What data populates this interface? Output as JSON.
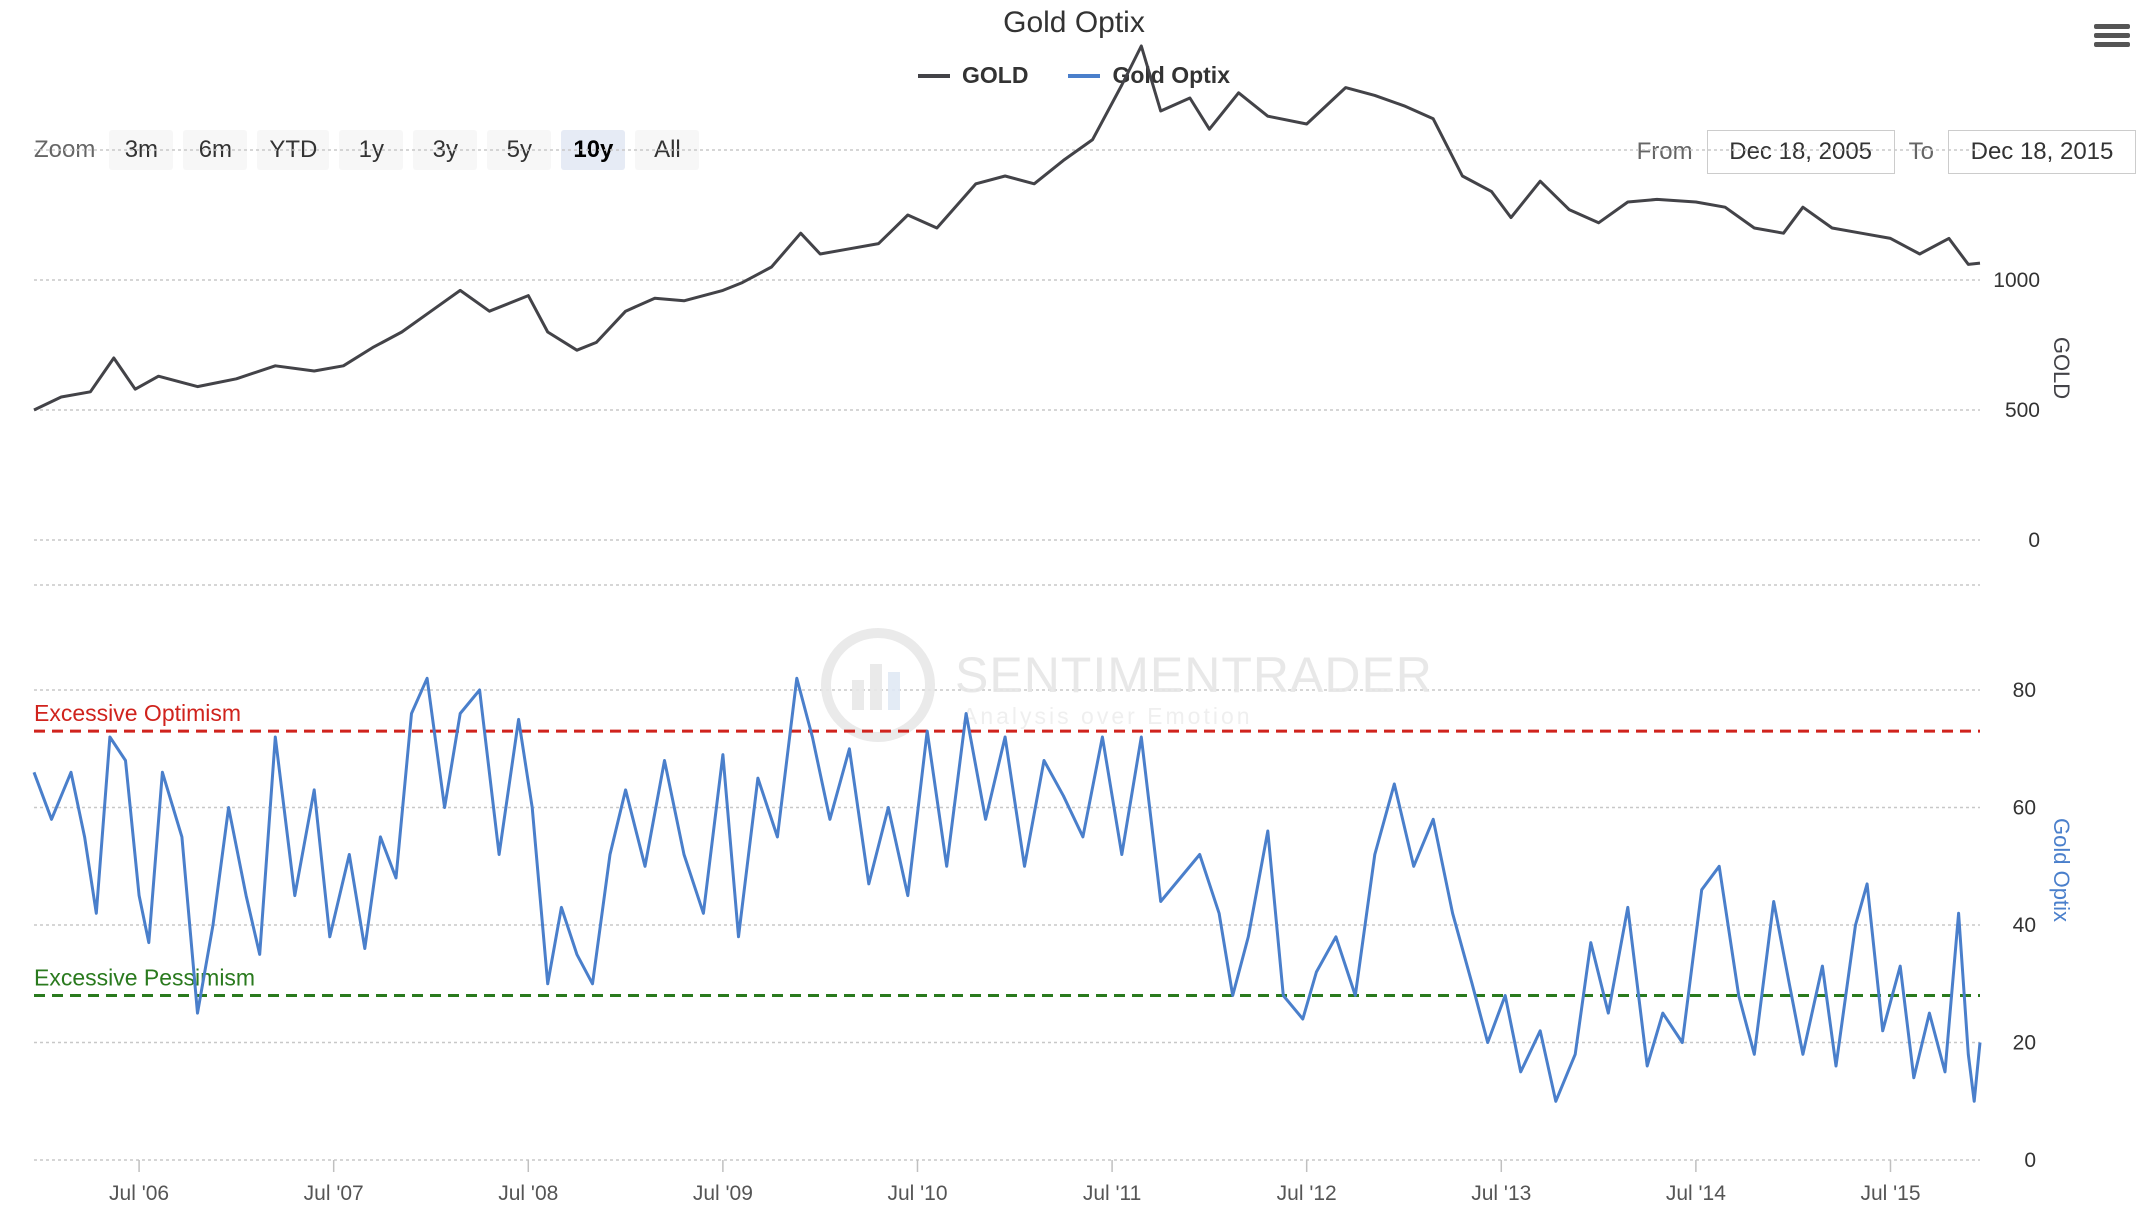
{
  "header": {
    "title": "Gold Optix"
  },
  "legend": [
    {
      "label": "GOLD",
      "color": "#434348"
    },
    {
      "label": "Gold Optix",
      "color": "#4a7fcb"
    }
  ],
  "zoom": {
    "label": "Zoom",
    "buttons": [
      "3m",
      "6m",
      "YTD",
      "1y",
      "3y",
      "5y",
      "10y",
      "All"
    ],
    "selected": "10y"
  },
  "range": {
    "from_label": "From",
    "from_value": "Dec 18, 2005",
    "to_label": "To",
    "to_value": "Dec 18, 2015"
  },
  "watermark": {
    "brand": "SENTIMENTRADER",
    "tagline": "Analysis over Emotion"
  },
  "icons": {
    "menu": "hamburger-menu-icon",
    "watermark_logo": "sentimentrader-logo-icon"
  },
  "chart_data": [
    {
      "type": "line",
      "name": "GOLD",
      "color": "#434348",
      "ylabel": "GOLD",
      "ylim": [
        0,
        1500
      ],
      "yticks": [
        0,
        500,
        1000
      ],
      "x_range": [
        2005.96,
        2015.96
      ],
      "xticks": [
        {
          "label": "Jul '06",
          "x": 2006.5
        },
        {
          "label": "Jul '07",
          "x": 2007.5
        },
        {
          "label": "Jul '08",
          "x": 2008.5
        },
        {
          "label": "Jul '09",
          "x": 2009.5
        },
        {
          "label": "Jul '10",
          "x": 2010.5
        },
        {
          "label": "Jul '11",
          "x": 2011.5
        },
        {
          "label": "Jul '12",
          "x": 2012.5
        },
        {
          "label": "Jul '13",
          "x": 2013.5
        },
        {
          "label": "Jul '14",
          "x": 2014.5
        },
        {
          "label": "Jul '15",
          "x": 2015.5
        }
      ],
      "points": [
        [
          2005.96,
          500
        ],
        [
          2006.1,
          550
        ],
        [
          2006.25,
          570
        ],
        [
          2006.37,
          700
        ],
        [
          2006.48,
          580
        ],
        [
          2006.6,
          630
        ],
        [
          2006.8,
          590
        ],
        [
          2007.0,
          620
        ],
        [
          2007.2,
          670
        ],
        [
          2007.4,
          650
        ],
        [
          2007.55,
          670
        ],
        [
          2007.7,
          740
        ],
        [
          2007.85,
          800
        ],
        [
          2008.0,
          880
        ],
        [
          2008.15,
          960
        ],
        [
          2008.3,
          880
        ],
        [
          2008.5,
          940
        ],
        [
          2008.6,
          800
        ],
        [
          2008.75,
          730
        ],
        [
          2008.85,
          760
        ],
        [
          2009.0,
          880
        ],
        [
          2009.15,
          930
        ],
        [
          2009.3,
          920
        ],
        [
          2009.5,
          960
        ],
        [
          2009.6,
          990
        ],
        [
          2009.75,
          1050
        ],
        [
          2009.9,
          1180
        ],
        [
          2010.0,
          1100
        ],
        [
          2010.15,
          1120
        ],
        [
          2010.3,
          1140
        ],
        [
          2010.45,
          1250
        ],
        [
          2010.6,
          1200
        ],
        [
          2010.8,
          1370
        ],
        [
          2010.95,
          1400
        ],
        [
          2011.1,
          1370
        ],
        [
          2011.25,
          1460
        ],
        [
          2011.4,
          1540
        ],
        [
          2011.55,
          1750
        ],
        [
          2011.65,
          1900
        ],
        [
          2011.75,
          1650
        ],
        [
          2011.9,
          1700
        ],
        [
          2012.0,
          1580
        ],
        [
          2012.15,
          1720
        ],
        [
          2012.3,
          1630
        ],
        [
          2012.5,
          1600
        ],
        [
          2012.7,
          1740
        ],
        [
          2012.85,
          1710
        ],
        [
          2013.0,
          1670
        ],
        [
          2013.15,
          1620
        ],
        [
          2013.3,
          1400
        ],
        [
          2013.45,
          1340
        ],
        [
          2013.55,
          1240
        ],
        [
          2013.7,
          1380
        ],
        [
          2013.85,
          1270
        ],
        [
          2014.0,
          1220
        ],
        [
          2014.15,
          1300
        ],
        [
          2014.3,
          1310
        ],
        [
          2014.5,
          1300
        ],
        [
          2014.65,
          1280
        ],
        [
          2014.8,
          1200
        ],
        [
          2014.95,
          1180
        ],
        [
          2015.05,
          1280
        ],
        [
          2015.2,
          1200
        ],
        [
          2015.35,
          1180
        ],
        [
          2015.5,
          1160
        ],
        [
          2015.65,
          1100
        ],
        [
          2015.8,
          1160
        ],
        [
          2015.9,
          1060
        ],
        [
          2015.96,
          1065
        ]
      ]
    },
    {
      "type": "line",
      "name": "Gold Optix",
      "color": "#4a7fcb",
      "ylabel": "Gold Optix",
      "ylim": [
        0,
        80
      ],
      "yticks": [
        0,
        20,
        40,
        60,
        80
      ],
      "x_range": [
        2005.96,
        2015.96
      ],
      "reference_lines": [
        {
          "label": "Excessive Optimism",
          "value": 73,
          "color": "#d0231d"
        },
        {
          "label": "Excessive Pessimism",
          "value": 28,
          "color": "#2a7a1e"
        }
      ],
      "points": [
        [
          2005.96,
          66
        ],
        [
          2006.05,
          58
        ],
        [
          2006.15,
          66
        ],
        [
          2006.22,
          55
        ],
        [
          2006.28,
          42
        ],
        [
          2006.35,
          72
        ],
        [
          2006.43,
          68
        ],
        [
          2006.5,
          45
        ],
        [
          2006.55,
          37
        ],
        [
          2006.62,
          66
        ],
        [
          2006.72,
          55
        ],
        [
          2006.8,
          25
        ],
        [
          2006.88,
          40
        ],
        [
          2006.96,
          60
        ],
        [
          2007.05,
          45
        ],
        [
          2007.12,
          35
        ],
        [
          2007.2,
          72
        ],
        [
          2007.3,
          45
        ],
        [
          2007.4,
          63
        ],
        [
          2007.48,
          38
        ],
        [
          2007.58,
          52
        ],
        [
          2007.66,
          36
        ],
        [
          2007.74,
          55
        ],
        [
          2007.82,
          48
        ],
        [
          2007.9,
          76
        ],
        [
          2007.98,
          82
        ],
        [
          2008.07,
          60
        ],
        [
          2008.15,
          76
        ],
        [
          2008.25,
          80
        ],
        [
          2008.35,
          52
        ],
        [
          2008.45,
          75
        ],
        [
          2008.52,
          60
        ],
        [
          2008.6,
          30
        ],
        [
          2008.67,
          43
        ],
        [
          2008.75,
          35
        ],
        [
          2008.83,
          30
        ],
        [
          2008.92,
          52
        ],
        [
          2009.0,
          63
        ],
        [
          2009.1,
          50
        ],
        [
          2009.2,
          68
        ],
        [
          2009.3,
          52
        ],
        [
          2009.4,
          42
        ],
        [
          2009.5,
          69
        ],
        [
          2009.58,
          38
        ],
        [
          2009.68,
          65
        ],
        [
          2009.78,
          55
        ],
        [
          2009.88,
          82
        ],
        [
          2009.96,
          72
        ],
        [
          2010.05,
          58
        ],
        [
          2010.15,
          70
        ],
        [
          2010.25,
          47
        ],
        [
          2010.35,
          60
        ],
        [
          2010.45,
          45
        ],
        [
          2010.55,
          73
        ],
        [
          2010.65,
          50
        ],
        [
          2010.75,
          76
        ],
        [
          2010.85,
          58
        ],
        [
          2010.95,
          72
        ],
        [
          2011.05,
          50
        ],
        [
          2011.15,
          68
        ],
        [
          2011.25,
          62
        ],
        [
          2011.35,
          55
        ],
        [
          2011.45,
          72
        ],
        [
          2011.55,
          52
        ],
        [
          2011.65,
          72
        ],
        [
          2011.75,
          44
        ],
        [
          2011.85,
          48
        ],
        [
          2011.95,
          52
        ],
        [
          2012.05,
          42
        ],
        [
          2012.12,
          28
        ],
        [
          2012.2,
          38
        ],
        [
          2012.3,
          56
        ],
        [
          2012.38,
          28
        ],
        [
          2012.48,
          24
        ],
        [
          2012.55,
          32
        ],
        [
          2012.65,
          38
        ],
        [
          2012.75,
          28
        ],
        [
          2012.85,
          52
        ],
        [
          2012.95,
          64
        ],
        [
          2013.05,
          50
        ],
        [
          2013.15,
          58
        ],
        [
          2013.25,
          42
        ],
        [
          2013.35,
          30
        ],
        [
          2013.43,
          20
        ],
        [
          2013.52,
          28
        ],
        [
          2013.6,
          15
        ],
        [
          2013.7,
          22
        ],
        [
          2013.78,
          10
        ],
        [
          2013.88,
          18
        ],
        [
          2013.96,
          37
        ],
        [
          2014.05,
          25
        ],
        [
          2014.15,
          43
        ],
        [
          2014.25,
          16
        ],
        [
          2014.33,
          25
        ],
        [
          2014.43,
          20
        ],
        [
          2014.53,
          46
        ],
        [
          2014.62,
          50
        ],
        [
          2014.72,
          28
        ],
        [
          2014.8,
          18
        ],
        [
          2014.9,
          44
        ],
        [
          2014.98,
          30
        ],
        [
          2015.05,
          18
        ],
        [
          2015.15,
          33
        ],
        [
          2015.22,
          16
        ],
        [
          2015.32,
          40
        ],
        [
          2015.38,
          47
        ],
        [
          2015.46,
          22
        ],
        [
          2015.55,
          33
        ],
        [
          2015.62,
          14
        ],
        [
          2015.7,
          25
        ],
        [
          2015.78,
          15
        ],
        [
          2015.85,
          42
        ],
        [
          2015.9,
          18
        ],
        [
          2015.93,
          10
        ],
        [
          2015.96,
          20
        ]
      ]
    }
  ]
}
